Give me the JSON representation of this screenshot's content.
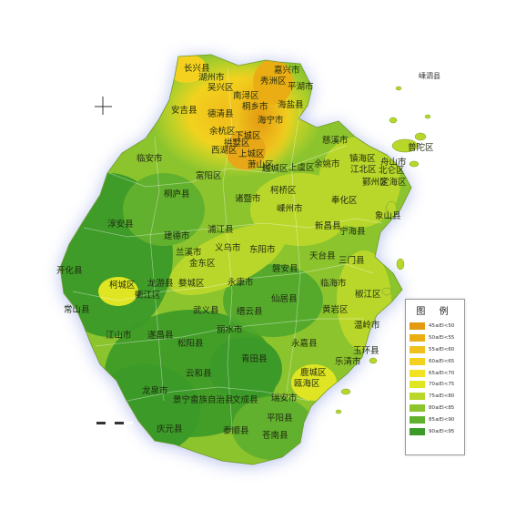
{
  "legend": {
    "title": "图 例",
    "items": [
      {
        "label": "45≤EI<50",
        "color": "#e39a12"
      },
      {
        "label": "50≤EI<55",
        "color": "#eaae14"
      },
      {
        "label": "55≤EI<60",
        "color": "#efc11c"
      },
      {
        "label": "60≤EI<65",
        "color": "#f3d11e"
      },
      {
        "label": "65≤EI<70",
        "color": "#f2e21f"
      },
      {
        "label": "70≤EI<75",
        "color": "#dfe522"
      },
      {
        "label": "75≤EI<80",
        "color": "#b9d72a"
      },
      {
        "label": "80≤EI<85",
        "color": "#8cc42e"
      },
      {
        "label": "85≤EI<90",
        "color": "#62b12e"
      },
      {
        "label": "90≤EI<95",
        "color": "#3b9a28"
      }
    ]
  },
  "external_labels": {
    "island": "嵊泗县"
  },
  "places": [
    "长兴县",
    "湖州市",
    "吴兴区",
    "南浔区",
    "嘉兴市",
    "平湖市",
    "秀洲区",
    "桐乡市",
    "海盐县",
    "安吉县",
    "德清县",
    "海宁市",
    "余杭区",
    "下城区",
    "拱墅区",
    "西湖区",
    "上城区",
    "萧山区",
    "越城区",
    "慈溪市",
    "镇海区",
    "北仑区",
    "江北区",
    "鄞州区",
    "奉化区",
    "象山县",
    "宁海县",
    "三门县",
    "临安市",
    "富阳区",
    "桐庐县",
    "诸暨市",
    "柯桥区",
    "上虞区",
    "余姚市",
    "嵊州市",
    "新昌县",
    "天台县",
    "淳安县",
    "建德市",
    "浦江县",
    "义乌市",
    "东阳市",
    "兰溪市",
    "金东区",
    "磐安县",
    "仙居县",
    "临海市",
    "开化县",
    "衢江区",
    "柯城区",
    "龙游县",
    "婺城区",
    "永康市",
    "缙云县",
    "武义县",
    "黄岩区",
    "椒江区",
    "江山市",
    "遂昌县",
    "松阳县",
    "丽水市",
    "温岭市",
    "玉环县",
    "云和县",
    "青田县",
    "永嘉县",
    "龙泉市",
    "景宁畲族自治县",
    "文成县",
    "瑞安市",
    "鹿城区",
    "瓯海区",
    "平阳县",
    "庆元县",
    "泰顺县",
    "苍南县",
    "常山县",
    "乐清市",
    "舟山市",
    "普陀区",
    "定海区"
  ]
}
